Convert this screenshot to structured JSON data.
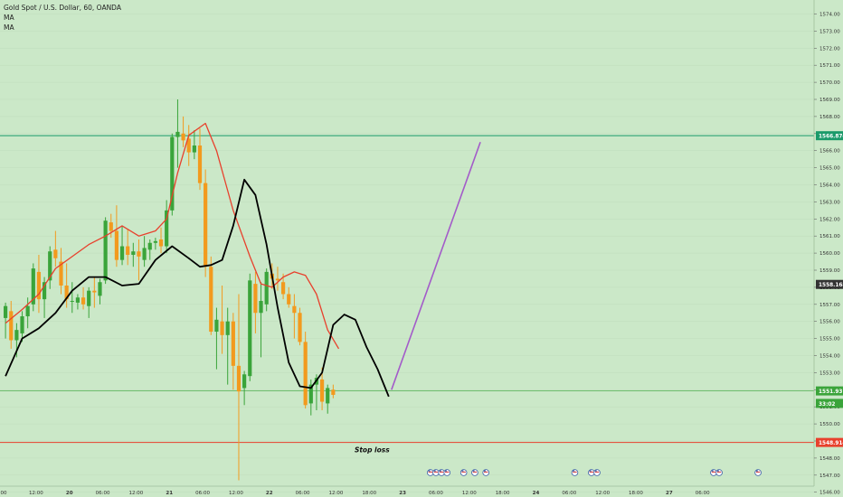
{
  "header": {
    "title": "Gold Spot / U.S. Dollar, 60, OANDA",
    "indicator_1": "MA",
    "indicator_2": "MA"
  },
  "colors": {
    "background": "#cbe8c8",
    "up_candle": "#3aa43a",
    "down_candle": "#f29a1e",
    "ma_fast": "#e8402c",
    "ma_slow": "#000000",
    "projection": "#a35bc9",
    "resistance_line": "#1a9a6a",
    "stop_loss_line": "#e8402c",
    "current_price_line": "#3aa43a",
    "ma_badge": "#333333"
  },
  "chart_data": {
    "type": "candlestick",
    "title": "Gold Spot / U.S. Dollar, 60, OANDA",
    "y_axis": {
      "ylim": [
        1545.6,
        1575.4
      ],
      "ticks": [
        1546.0,
        1547.0,
        1548.0,
        1549.0,
        1550.0,
        1551.0,
        1552.0,
        1553.0,
        1554.0,
        1555.0,
        1556.0,
        1557.0,
        1558.0,
        1559.0,
        1560.0,
        1561.0,
        1562.0,
        1563.0,
        1564.0,
        1565.0,
        1566.0,
        1567.0,
        1568.0,
        1569.0,
        1570.0,
        1571.0,
        1572.0,
        1573.0,
        1574.0
      ],
      "position": "right"
    },
    "x_axis": {
      "tick_labels": [
        ":00",
        "12:00",
        "20",
        "06:00",
        "12:00",
        "21",
        "06:00",
        "12:00",
        "22",
        "06:00",
        "12:00",
        "18:00",
        "23",
        "06:00",
        "12:00",
        "18:00",
        "24",
        "06:00",
        "12:00",
        "18:00",
        "27",
        "06:00"
      ],
      "tick_index": [
        -0.5,
        5.5,
        11.5,
        17.5,
        23.5,
        29.5,
        35.5,
        41.5,
        47.5,
        53.5,
        59.5,
        65.5,
        71.5,
        77.5,
        83.5,
        89.5,
        95.5,
        101.5,
        107.5,
        113.5,
        119.5,
        125.5
      ]
    },
    "candles": [
      {
        "o": 1556.2,
        "h": 1557.1,
        "l": 1555.0,
        "c": 1556.9
      },
      {
        "o": 1556.6,
        "h": 1557.2,
        "l": 1554.4,
        "c": 1554.9
      },
      {
        "o": 1554.9,
        "h": 1555.9,
        "l": 1553.9,
        "c": 1555.5
      },
      {
        "o": 1555.3,
        "h": 1556.6,
        "l": 1554.8,
        "c": 1556.3
      },
      {
        "o": 1556.3,
        "h": 1557.4,
        "l": 1555.6,
        "c": 1556.9
      },
      {
        "o": 1557.0,
        "h": 1559.4,
        "l": 1556.6,
        "c": 1559.1
      },
      {
        "o": 1558.9,
        "h": 1559.9,
        "l": 1556.5,
        "c": 1557.3
      },
      {
        "o": 1557.3,
        "h": 1558.6,
        "l": 1556.2,
        "c": 1558.3
      },
      {
        "o": 1558.4,
        "h": 1560.4,
        "l": 1557.9,
        "c": 1560.1
      },
      {
        "o": 1560.2,
        "h": 1561.3,
        "l": 1559.2,
        "c": 1559.7
      },
      {
        "o": 1559.5,
        "h": 1560.3,
        "l": 1557.6,
        "c": 1558.1
      },
      {
        "o": 1558.1,
        "h": 1559.4,
        "l": 1556.8,
        "c": 1557.3
      },
      {
        "o": 1557.2,
        "h": 1558.3,
        "l": 1556.5,
        "c": 1557.2
      },
      {
        "o": 1557.1,
        "h": 1557.6,
        "l": 1556.7,
        "c": 1557.4
      },
      {
        "o": 1557.4,
        "h": 1558.0,
        "l": 1556.7,
        "c": 1557.0
      },
      {
        "o": 1556.9,
        "h": 1558.0,
        "l": 1556.2,
        "c": 1557.8
      },
      {
        "o": 1557.8,
        "h": 1558.6,
        "l": 1556.8,
        "c": 1557.7
      },
      {
        "o": 1557.5,
        "h": 1558.5,
        "l": 1557.0,
        "c": 1558.3
      },
      {
        "o": 1558.4,
        "h": 1562.1,
        "l": 1558.2,
        "c": 1561.9
      },
      {
        "o": 1561.8,
        "h": 1562.3,
        "l": 1560.9,
        "c": 1561.3
      },
      {
        "o": 1561.3,
        "h": 1562.8,
        "l": 1559.2,
        "c": 1559.6
      },
      {
        "o": 1559.6,
        "h": 1561.6,
        "l": 1559.3,
        "c": 1560.4
      },
      {
        "o": 1560.4,
        "h": 1561.4,
        "l": 1559.3,
        "c": 1559.9
      },
      {
        "o": 1559.9,
        "h": 1560.6,
        "l": 1559.2,
        "c": 1560.1
      },
      {
        "o": 1560.1,
        "h": 1560.8,
        "l": 1558.4,
        "c": 1559.8
      },
      {
        "o": 1559.6,
        "h": 1561.0,
        "l": 1559.2,
        "c": 1560.3
      },
      {
        "o": 1560.2,
        "h": 1560.8,
        "l": 1559.6,
        "c": 1560.6
      },
      {
        "o": 1560.6,
        "h": 1560.9,
        "l": 1560.2,
        "c": 1560.7
      },
      {
        "o": 1560.8,
        "h": 1561.5,
        "l": 1560.0,
        "c": 1560.4
      },
      {
        "o": 1560.4,
        "h": 1563.1,
        "l": 1560.0,
        "c": 1562.5
      },
      {
        "o": 1562.5,
        "h": 1567.0,
        "l": 1562.2,
        "c": 1566.8
      },
      {
        "o": 1566.8,
        "h": 1569.0,
        "l": 1565.0,
        "c": 1567.1
      },
      {
        "o": 1567.0,
        "h": 1568.0,
        "l": 1566.2,
        "c": 1566.6
      },
      {
        "o": 1566.7,
        "h": 1567.5,
        "l": 1565.1,
        "c": 1565.9
      },
      {
        "o": 1565.9,
        "h": 1567.2,
        "l": 1565.5,
        "c": 1566.3
      },
      {
        "o": 1566.3,
        "h": 1567.3,
        "l": 1563.7,
        "c": 1564.1
      },
      {
        "o": 1564.1,
        "h": 1564.9,
        "l": 1558.6,
        "c": 1559.2
      },
      {
        "o": 1559.2,
        "h": 1559.8,
        "l": 1555.2,
        "c": 1555.4
      },
      {
        "o": 1555.4,
        "h": 1556.8,
        "l": 1553.2,
        "c": 1556.1
      },
      {
        "o": 1556.0,
        "h": 1558.1,
        "l": 1554.1,
        "c": 1555.2
      },
      {
        "o": 1555.2,
        "h": 1556.8,
        "l": 1552.3,
        "c": 1556.0
      },
      {
        "o": 1556.0,
        "h": 1556.5,
        "l": 1552.0,
        "c": 1553.4
      },
      {
        "o": 1553.4,
        "h": 1557.6,
        "l": 1546.7,
        "c": 1551.9
      },
      {
        "o": 1552.1,
        "h": 1553.1,
        "l": 1551.1,
        "c": 1552.9
      },
      {
        "o": 1552.8,
        "h": 1558.8,
        "l": 1552.5,
        "c": 1558.4
      },
      {
        "o": 1558.2,
        "h": 1558.9,
        "l": 1555.3,
        "c": 1556.5
      },
      {
        "o": 1556.5,
        "h": 1558.3,
        "l": 1553.9,
        "c": 1557.2
      },
      {
        "o": 1557.0,
        "h": 1559.1,
        "l": 1556.6,
        "c": 1558.9
      },
      {
        "o": 1558.8,
        "h": 1559.4,
        "l": 1557.9,
        "c": 1558.5
      },
      {
        "o": 1558.5,
        "h": 1559.2,
        "l": 1557.8,
        "c": 1558.4
      },
      {
        "o": 1558.3,
        "h": 1558.8,
        "l": 1557.3,
        "c": 1557.6
      },
      {
        "o": 1557.6,
        "h": 1558.0,
        "l": 1556.8,
        "c": 1557.0
      },
      {
        "o": 1556.9,
        "h": 1557.6,
        "l": 1555.0,
        "c": 1556.5
      },
      {
        "o": 1556.5,
        "h": 1556.8,
        "l": 1554.6,
        "c": 1554.8
      },
      {
        "o": 1554.8,
        "h": 1555.4,
        "l": 1550.9,
        "c": 1551.1
      },
      {
        "o": 1551.2,
        "h": 1552.6,
        "l": 1550.5,
        "c": 1552.3
      },
      {
        "o": 1552.3,
        "h": 1552.9,
        "l": 1550.8,
        "c": 1552.7
      },
      {
        "o": 1552.6,
        "h": 1553.3,
        "l": 1550.8,
        "c": 1551.3
      },
      {
        "o": 1551.2,
        "h": 1552.3,
        "l": 1550.6,
        "c": 1552.1
      },
      {
        "o": 1552.0,
        "h": 1552.3,
        "l": 1551.5,
        "c": 1551.7
      }
    ],
    "ma_fast": [
      [
        0,
        1555.9
      ],
      [
        3,
        1556.7
      ],
      [
        6,
        1557.6
      ],
      [
        9,
        1559.1
      ],
      [
        12,
        1559.8
      ],
      [
        15,
        1560.5
      ],
      [
        18,
        1561.0
      ],
      [
        21,
        1561.6
      ],
      [
        24,
        1561.0
      ],
      [
        27,
        1561.3
      ],
      [
        29,
        1562.0
      ],
      [
        31,
        1564.7
      ],
      [
        33,
        1566.9
      ],
      [
        36,
        1567.6
      ],
      [
        38,
        1566.0
      ],
      [
        41,
        1562.5
      ],
      [
        44,
        1559.8
      ],
      [
        46,
        1558.2
      ],
      [
        48,
        1558.0
      ],
      [
        50,
        1558.6
      ],
      [
        52,
        1558.9
      ],
      [
        54,
        1558.7
      ],
      [
        56,
        1557.6
      ],
      [
        58,
        1555.5
      ],
      [
        60,
        1554.4
      ]
    ],
    "ma_slow": [
      [
        0,
        1552.8
      ],
      [
        3,
        1555.0
      ],
      [
        6,
        1555.6
      ],
      [
        9,
        1556.5
      ],
      [
        12,
        1557.8
      ],
      [
        15,
        1558.6
      ],
      [
        18,
        1558.6
      ],
      [
        21,
        1558.1
      ],
      [
        24,
        1558.2
      ],
      [
        27,
        1559.6
      ],
      [
        30,
        1560.4
      ],
      [
        33,
        1559.7
      ],
      [
        35,
        1559.2
      ],
      [
        37,
        1559.3
      ],
      [
        39,
        1559.6
      ],
      [
        41,
        1561.6
      ],
      [
        43,
        1564.3
      ],
      [
        45,
        1563.4
      ],
      [
        47,
        1560.5
      ],
      [
        49,
        1556.8
      ],
      [
        51,
        1553.6
      ],
      [
        53,
        1552.2
      ],
      [
        55,
        1552.1
      ],
      [
        57,
        1553.0
      ],
      [
        59,
        1555.8
      ],
      [
        61,
        1556.4
      ],
      [
        63,
        1556.1
      ],
      [
        65,
        1554.5
      ],
      [
        67,
        1553.2
      ],
      [
        69,
        1551.6
      ]
    ],
    "horizontal_lines": [
      {
        "name": "resistance",
        "price": 1566.874,
        "label": "1566.874"
      },
      {
        "name": "stop-loss",
        "price": 1548.914,
        "label": "1548.914"
      },
      {
        "name": "current-price",
        "price": 1551.931,
        "label": "1551.931"
      }
    ],
    "projection_line": [
      [
        69.5,
        1552.0
      ],
      [
        85.5,
        1566.5
      ]
    ],
    "price_badges": [
      {
        "name": "ma-value-badge",
        "price": 1558.168,
        "label": "1558.168"
      },
      {
        "name": "countdown-badge",
        "price": 1551.2,
        "label": "33:02"
      }
    ],
    "annotations": [
      {
        "text": "Stop loss",
        "x_index": 66.0,
        "price": 1548.5
      }
    ],
    "event_markers": [
      76.5,
      77.5,
      78.5,
      79.5,
      82.5,
      84.5,
      86.5,
      102.5,
      105.5,
      106.5,
      127.5,
      128.5,
      135.5
    ]
  }
}
